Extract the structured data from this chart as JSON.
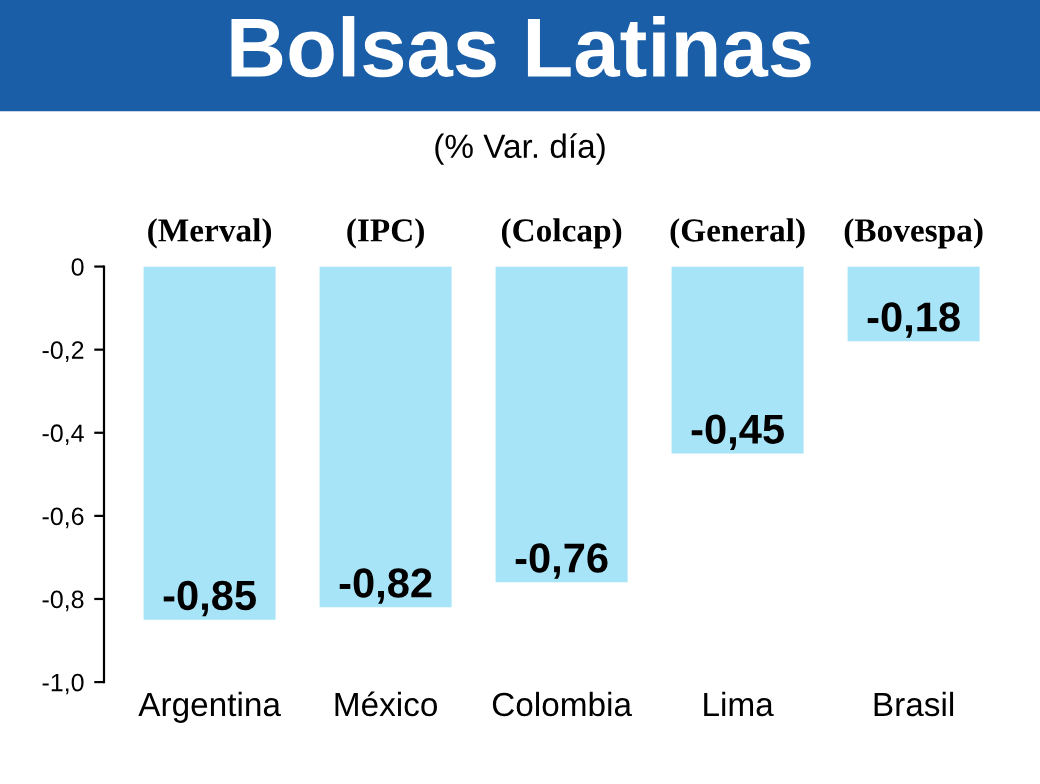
{
  "chart_data": {
    "type": "bar",
    "title": "Bolsas Latinas",
    "subtitle": "(% Var. día)",
    "categories": [
      "Argentina",
      "México",
      "Colombia",
      "Lima",
      "Brasil"
    ],
    "values": [
      -0.85,
      -0.82,
      -0.76,
      -0.45,
      -0.18
    ],
    "value_labels": [
      "-0,85",
      "-0,82",
      "-0,76",
      "-0,45",
      "-0,18"
    ],
    "color": "#a8e4f7",
    "annotations": [
      "(Merval)",
      "(IPC)",
      "(Colcap)",
      "(General)",
      "(Bovespa)"
    ],
    "ylim": [
      -1.0,
      0
    ],
    "yticks": [
      0,
      {
        "value": -0.2,
        "label": "-0,2"
      },
      {
        "value": -0.4,
        "label": "-0,4"
      },
      {
        "value": -0.6,
        "label": "-0,6"
      },
      {
        "value": -0.8,
        "label": "-0,8"
      },
      {
        "value": -1.0,
        "label": "-1,0"
      }
    ],
    "grid": false,
    "legend": false
  }
}
